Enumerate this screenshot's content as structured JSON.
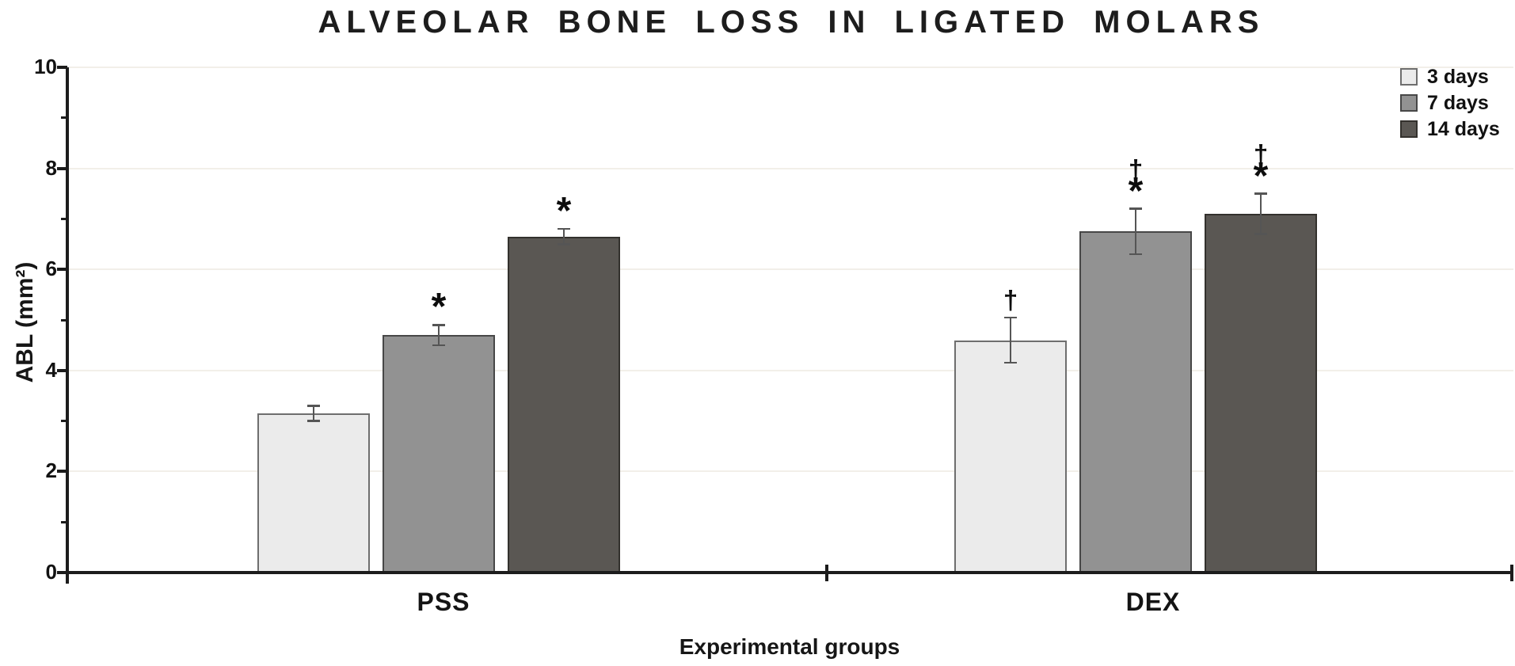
{
  "chart_data": {
    "type": "bar",
    "title": "ALVEOLAR BONE LOSS IN LIGATED MOLARS",
    "xlabel": "Experimental groups",
    "ylabel": "ABL (mm²)",
    "ylim": [
      0,
      10
    ],
    "y_major_ticks": [
      0,
      2,
      4,
      6,
      8,
      10
    ],
    "y_minor_ticks": [
      1,
      3,
      5,
      7,
      9
    ],
    "grid_values": [
      2,
      4,
      6,
      8,
      10
    ],
    "grid_on": true,
    "categories": [
      "PSS",
      "DEX"
    ],
    "series": [
      {
        "name": "3 days",
        "fill": "#ebebeb",
        "border": "#6e6e6e",
        "values": [
          3.15,
          4.6
        ],
        "errors": [
          0.15,
          0.45
        ],
        "annotations": [
          [],
          [
            "†"
          ]
        ]
      },
      {
        "name": "7 days",
        "fill": "#929292",
        "border": "#474747",
        "values": [
          4.7,
          6.75
        ],
        "errors": [
          0.2,
          0.45
        ],
        "annotations": [
          [
            "*"
          ],
          [
            "†",
            "*"
          ]
        ]
      },
      {
        "name": "14 days",
        "fill": "#5a5753",
        "border": "#33312d",
        "values": [
          6.65,
          7.1
        ],
        "errors": [
          0.15,
          0.4
        ],
        "annotations": [
          [
            "*"
          ],
          [
            "†",
            "*"
          ]
        ]
      }
    ],
    "legend": {
      "position": "top-right",
      "entries": [
        "3 days",
        "7 days",
        "14 days"
      ]
    },
    "colors": {
      "axis": "#1c1c1c",
      "grid": "#f2efe9",
      "error_bar": "#555555",
      "text": "#1f1f1f"
    }
  }
}
